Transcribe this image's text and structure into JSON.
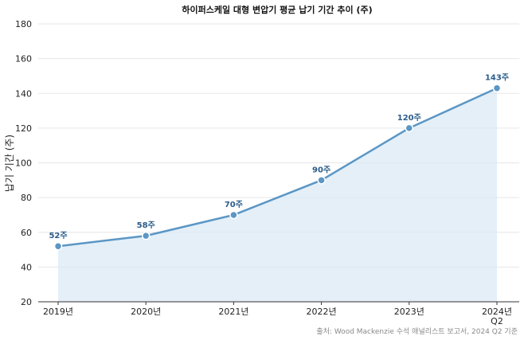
{
  "chart_data": {
    "type": "area",
    "title": "하이퍼스케일 대형 변압기 평균 납기 기간 추이 (주)",
    "ylabel": "납기 기간 (주)",
    "xlabel": "",
    "categories": [
      "2019년",
      "2020년",
      "2021년",
      "2022년",
      "2023년",
      "2024년 Q2"
    ],
    "values": [
      52,
      58,
      70,
      90,
      120,
      143
    ],
    "data_labels": [
      "52주",
      "58주",
      "70주",
      "90주",
      "120주",
      "143주"
    ],
    "ylim": [
      20,
      180
    ],
    "yticks": [
      20,
      40,
      60,
      80,
      100,
      120,
      140,
      160,
      180
    ],
    "grid": "horizontal",
    "source": "출처: Wood Mackenzie 수석 애널리스트 보고서, 2024 Q2 기준",
    "colors": {
      "line": "#5b96c4",
      "fill": "#dbe9f6",
      "point": "#5b96c4",
      "label": "#2b5c8a",
      "grid": "#e6e6e6"
    }
  }
}
